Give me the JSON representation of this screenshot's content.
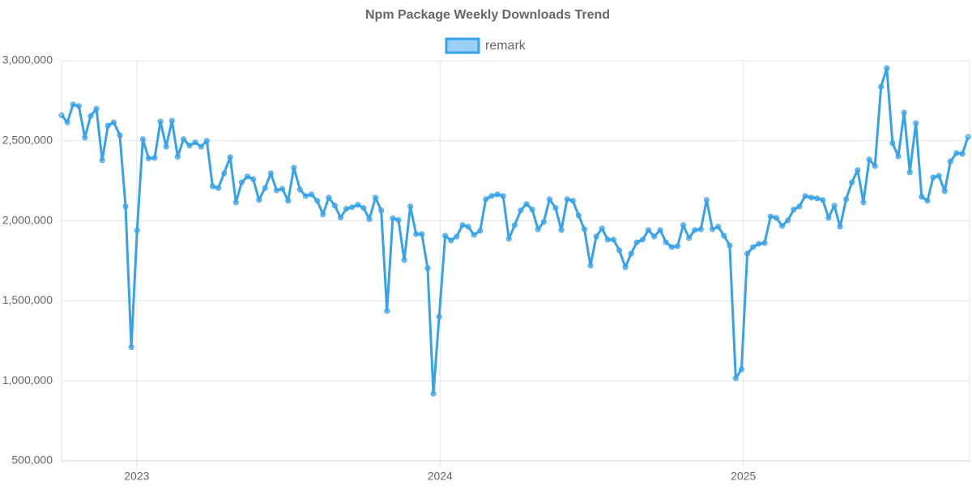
{
  "chart_data": {
    "type": "line",
    "title": "Npm Package Weekly Downloads Trend",
    "grid": true,
    "legend": "top",
    "xlim": [
      2022.752,
      2025.746
    ],
    "xticks": [
      2023,
      2024,
      2025
    ],
    "ylim": [
      500000,
      3000000
    ],
    "yticks": [
      {
        "value": 500000,
        "label": "500,000"
      },
      {
        "value": 1000000,
        "label": "1,000,000"
      },
      {
        "value": 1500000,
        "label": "1,500,000"
      },
      {
        "value": 2000000,
        "label": "2,000,000"
      },
      {
        "value": 2500000,
        "label": "2,500,000"
      },
      {
        "value": 3000000,
        "label": "3,000,000"
      }
    ],
    "x": [
      2022.752,
      2022.771,
      2022.79,
      2022.809,
      2022.829,
      2022.848,
      2022.867,
      2022.886,
      2022.905,
      2022.924,
      2022.944,
      2022.963,
      2022.982,
      2023.001,
      2023.02,
      2023.039,
      2023.059,
      2023.078,
      2023.097,
      2023.116,
      2023.135,
      2023.154,
      2023.174,
      2023.193,
      2023.212,
      2023.231,
      2023.25,
      2023.269,
      2023.288,
      2023.308,
      2023.327,
      2023.346,
      2023.365,
      2023.384,
      2023.403,
      2023.423,
      2023.442,
      2023.461,
      2023.48,
      2023.499,
      2023.518,
      2023.538,
      2023.557,
      2023.576,
      2023.595,
      2023.614,
      2023.633,
      2023.653,
      2023.672,
      2023.691,
      2023.71,
      2023.729,
      2023.748,
      2023.767,
      2023.787,
      2023.806,
      2023.825,
      2023.844,
      2023.863,
      2023.882,
      2023.902,
      2023.921,
      2023.94,
      2023.959,
      2023.978,
      2023.997,
      2024.017,
      2024.036,
      2024.055,
      2024.074,
      2024.093,
      2024.112,
      2024.132,
      2024.151,
      2024.17,
      2024.189,
      2024.208,
      2024.227,
      2024.246,
      2024.266,
      2024.285,
      2024.304,
      2024.323,
      2024.342,
      2024.361,
      2024.381,
      2024.4,
      2024.419,
      2024.438,
      2024.457,
      2024.476,
      2024.496,
      2024.515,
      2024.534,
      2024.553,
      2024.572,
      2024.591,
      2024.611,
      2024.63,
      2024.649,
      2024.668,
      2024.687,
      2024.706,
      2024.726,
      2024.745,
      2024.764,
      2024.783,
      2024.802,
      2024.821,
      2024.84,
      2024.86,
      2024.879,
      2024.898,
      2024.917,
      2024.936,
      2024.955,
      2024.975,
      2024.994,
      2025.013,
      2025.032,
      2025.051,
      2025.07,
      2025.09,
      2025.109,
      2025.128,
      2025.147,
      2025.166,
      2025.185,
      2025.204,
      2025.224,
      2025.243,
      2025.262,
      2025.281,
      2025.3,
      2025.319,
      2025.339,
      2025.358,
      2025.377,
      2025.396,
      2025.415,
      2025.434,
      2025.454,
      2025.473,
      2025.492,
      2025.511,
      2025.53,
      2025.549,
      2025.569,
      2025.588,
      2025.607,
      2025.626,
      2025.645,
      2025.664,
      2025.683,
      2025.703,
      2025.722,
      2025.741
    ],
    "series": [
      {
        "name": "remark",
        "color": "#36a2eb",
        "values": [
          2660000,
          2615000,
          2727000,
          2717000,
          2520000,
          2655000,
          2700000,
          2378000,
          2595000,
          2615000,
          2535000,
          2090000,
          1210000,
          1940000,
          2510000,
          2390000,
          2393000,
          2620000,
          2463000,
          2625000,
          2400000,
          2510000,
          2470000,
          2490000,
          2463000,
          2500000,
          2215000,
          2205000,
          2297000,
          2398000,
          2115000,
          2240000,
          2277000,
          2260000,
          2130000,
          2205000,
          2297000,
          2190000,
          2200000,
          2125000,
          2332000,
          2195000,
          2155000,
          2165000,
          2125000,
          2040000,
          2145000,
          2095000,
          2020000,
          2075000,
          2085000,
          2100000,
          2080000,
          2010000,
          2145000,
          2065000,
          1436000,
          2015000,
          2005000,
          1755000,
          2090000,
          1917000,
          1917000,
          1704000,
          920000,
          1400000,
          1907000,
          1877000,
          1902000,
          1973000,
          1963000,
          1912000,
          1937000,
          2135000,
          2155000,
          2165000,
          2155000,
          1887000,
          1973000,
          2065000,
          2105000,
          2070000,
          1947000,
          1993000,
          2135000,
          2080000,
          1942000,
          2135000,
          2125000,
          2033000,
          1947000,
          1720000,
          1902000,
          1952000,
          1882000,
          1882000,
          1816000,
          1710000,
          1795000,
          1866000,
          1882000,
          1942000,
          1902000,
          1942000,
          1866000,
          1836000,
          1841000,
          1973000,
          1892000,
          1942000,
          1947000,
          2130000,
          1947000,
          1963000,
          1907000,
          1846000,
          1016000,
          1072000,
          1795000,
          1836000,
          1856000,
          1861000,
          2028000,
          2018000,
          1968000,
          2003000,
          2070000,
          2090000,
          2155000,
          2145000,
          2140000,
          2130000,
          2018000,
          2095000,
          1963000,
          2135000,
          2240000,
          2317000,
          2115000,
          2383000,
          2342000,
          2838000,
          2954000,
          2484000,
          2403000,
          2676000,
          2302000,
          2610000,
          2150000,
          2125000,
          2271000,
          2281000,
          2185000,
          2372000,
          2423000,
          2418000,
          2524000
        ]
      }
    ]
  }
}
